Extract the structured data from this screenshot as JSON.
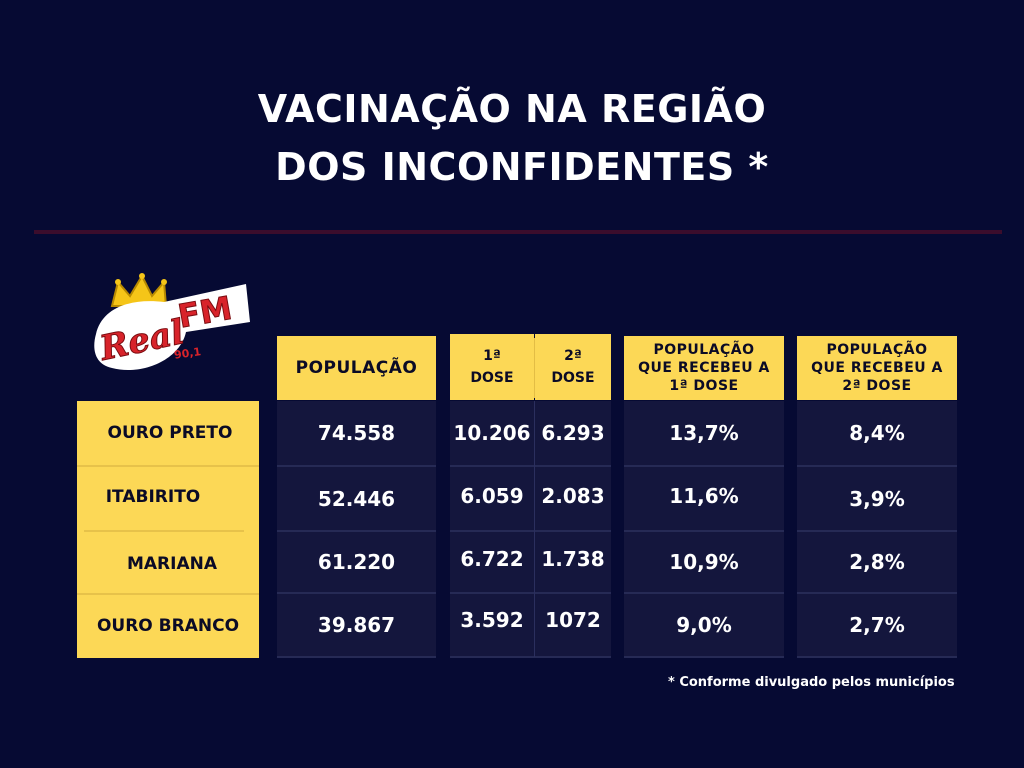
{
  "title": {
    "line1": "VACINAÇÃO NA REGIÃO",
    "line2": "DOS INCONFIDENTES *"
  },
  "logo": {
    "brand": "Real",
    "suffix": "FM",
    "frequency": "90,1"
  },
  "headers": {
    "population": "POPULAÇÃO",
    "dose1_sup": "1ª",
    "dose1": "DOSE",
    "dose2_sup": "2ª",
    "dose2": "DOSE",
    "pct1_l1": "POPULAÇÃO",
    "pct1_l2": "QUE RECEBEU A",
    "pct1_l3": "1ª DOSE",
    "pct2_l1": "POPULAÇÃO",
    "pct2_l2": "QUE RECEBEU A",
    "pct2_l3": "2ª DOSE"
  },
  "rows": [
    {
      "city": "OURO PRETO",
      "population": "74.558",
      "dose1": "10.206",
      "dose2": "6.293",
      "pct1": "13,7%",
      "pct2": "8,4%"
    },
    {
      "city": "ITABIRITO",
      "population": "52.446",
      "dose1": "6.059",
      "dose2": "2.083",
      "pct1": "11,6%",
      "pct2": "3,9%"
    },
    {
      "city": "MARIANA",
      "population": "61.220",
      "dose1": "6.722",
      "dose2": "1.738",
      "pct1": "10,9%",
      "pct2": "2,8%"
    },
    {
      "city": "OURO BRANCO",
      "population": "39.867",
      "dose1": "3.592",
      "dose2": "1072",
      "pct1": "9,0%",
      "pct2": "2,7%"
    }
  ],
  "footnote": "* Conforme divulgado pelos municípios",
  "colors": {
    "background": "#060a33",
    "highlight": "#fcd856",
    "cell": "#14163d",
    "logo_red": "#d8232a",
    "crown": "#f5c518"
  }
}
